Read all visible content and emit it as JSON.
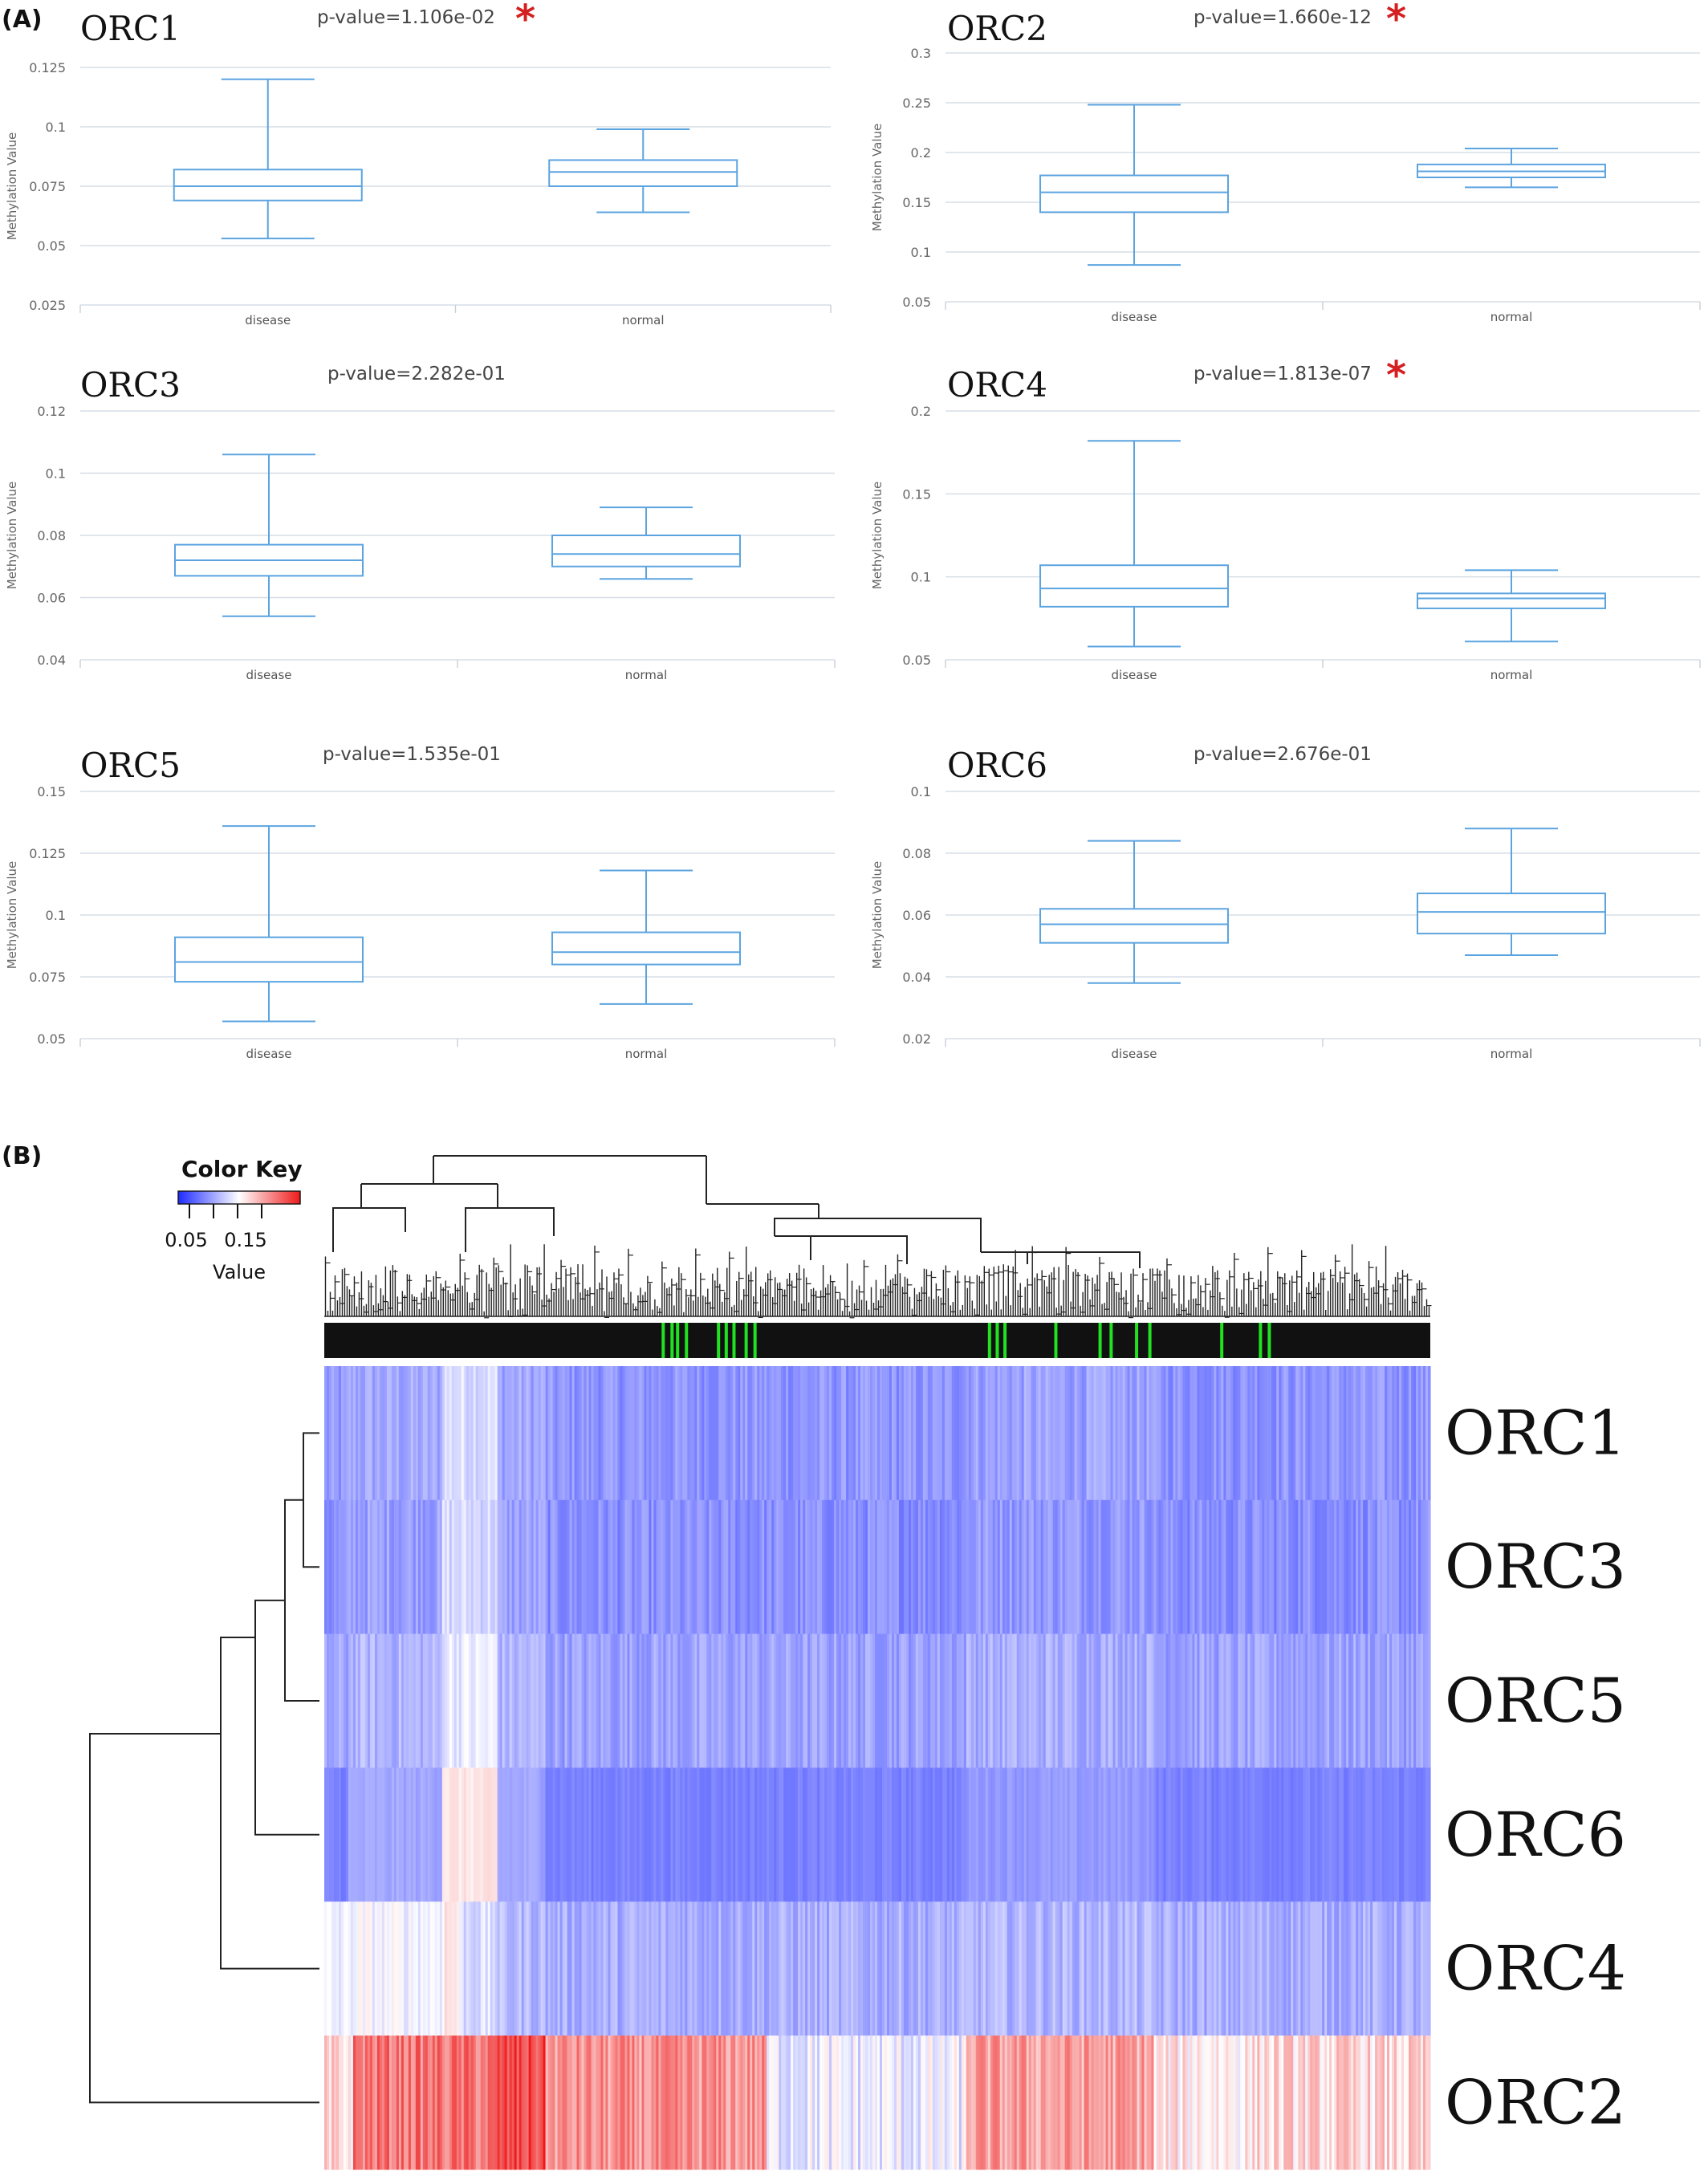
{
  "panel_a_label": "(A)",
  "panel_b_label": "(B)",
  "chart_data": [
    {
      "type": "box",
      "gene": "ORC1",
      "pvalue": "p-value=1.106e-02",
      "significant": true,
      "ylabel": "Methylation Value",
      "ylim": [
        0.025,
        0.125
      ],
      "yticks": [
        "0.025",
        "0.05",
        "0.075",
        "0.1",
        "0.125"
      ],
      "categories": [
        "disease",
        "normal"
      ],
      "boxes": [
        {
          "min": 0.053,
          "q1": 0.069,
          "median": 0.075,
          "q3": 0.082,
          "max": 0.12
        },
        {
          "min": 0.064,
          "q1": 0.075,
          "median": 0.081,
          "q3": 0.086,
          "max": 0.099
        }
      ]
    },
    {
      "type": "box",
      "gene": "ORC2",
      "pvalue": "p-value=1.660e-12",
      "significant": true,
      "ylabel": "Methylation Value",
      "ylim": [
        0.05,
        0.3
      ],
      "yticks": [
        "0.05",
        "0.1",
        "0.15",
        "0.2",
        "0.25",
        "0.3"
      ],
      "categories": [
        "disease",
        "normal"
      ],
      "boxes": [
        {
          "min": 0.087,
          "q1": 0.14,
          "median": 0.16,
          "q3": 0.177,
          "max": 0.248
        },
        {
          "min": 0.165,
          "q1": 0.175,
          "median": 0.181,
          "q3": 0.188,
          "max": 0.204
        }
      ]
    },
    {
      "type": "box",
      "gene": "ORC3",
      "pvalue": "p-value=2.282e-01",
      "significant": false,
      "ylabel": "Methylation Value",
      "ylim": [
        0.04,
        0.12
      ],
      "yticks": [
        "0.04",
        "0.06",
        "0.08",
        "0.1",
        "0.12"
      ],
      "categories": [
        "disease",
        "normal"
      ],
      "boxes": [
        {
          "min": 0.054,
          "q1": 0.067,
          "median": 0.072,
          "q3": 0.077,
          "max": 0.106
        },
        {
          "min": 0.066,
          "q1": 0.07,
          "median": 0.074,
          "q3": 0.08,
          "max": 0.089
        }
      ]
    },
    {
      "type": "box",
      "gene": "ORC4",
      "pvalue": "p-value=1.813e-07",
      "significant": true,
      "ylabel": "Methylation Value",
      "ylim": [
        0.05,
        0.2
      ],
      "yticks": [
        "0.05",
        "0.1",
        "0.15",
        "0.2"
      ],
      "categories": [
        "disease",
        "normal"
      ],
      "boxes": [
        {
          "min": 0.058,
          "q1": 0.082,
          "median": 0.093,
          "q3": 0.107,
          "max": 0.182
        },
        {
          "min": 0.061,
          "q1": 0.081,
          "median": 0.087,
          "q3": 0.09,
          "max": 0.104
        }
      ]
    },
    {
      "type": "box",
      "gene": "ORC5",
      "pvalue": "p-value=1.535e-01",
      "significant": false,
      "ylabel": "Methylation Value",
      "ylim": [
        0.05,
        0.15
      ],
      "yticks": [
        "0.05",
        "0.075",
        "0.1",
        "0.125",
        "0.15"
      ],
      "categories": [
        "disease",
        "normal"
      ],
      "boxes": [
        {
          "min": 0.057,
          "q1": 0.073,
          "median": 0.081,
          "q3": 0.091,
          "max": 0.136
        },
        {
          "min": 0.064,
          "q1": 0.08,
          "median": 0.085,
          "q3": 0.093,
          "max": 0.118
        }
      ]
    },
    {
      "type": "box",
      "gene": "ORC6",
      "pvalue": "p-value=2.676e-01",
      "significant": false,
      "ylabel": "Methylation Value",
      "ylim": [
        0.02,
        0.1
      ],
      "yticks": [
        "0.02",
        "0.04",
        "0.06",
        "0.08",
        "0.1"
      ],
      "categories": [
        "disease",
        "normal"
      ],
      "boxes": [
        {
          "min": 0.038,
          "q1": 0.051,
          "median": 0.057,
          "q3": 0.062,
          "max": 0.084
        },
        {
          "min": 0.047,
          "q1": 0.054,
          "median": 0.061,
          "q3": 0.067,
          "max": 0.088
        }
      ]
    },
    {
      "type": "heatmap",
      "color_key_title": "Color Key",
      "color_key_ticks": [
        "0.05",
        "0.15"
      ],
      "color_key_label": "Value",
      "color_low": "#1f2bff",
      "color_mid": "#ffffff",
      "color_high": "#ee1a1a",
      "sample_bar_colors": {
        "disease": "#111111",
        "normal": "#22e022"
      },
      "rows": [
        "ORC1",
        "ORC3",
        "ORC5",
        "ORC6",
        "ORC4",
        "ORC2"
      ],
      "row_mean_values": [
        0.075,
        0.072,
        0.082,
        0.057,
        0.093,
        0.16
      ]
    }
  ]
}
